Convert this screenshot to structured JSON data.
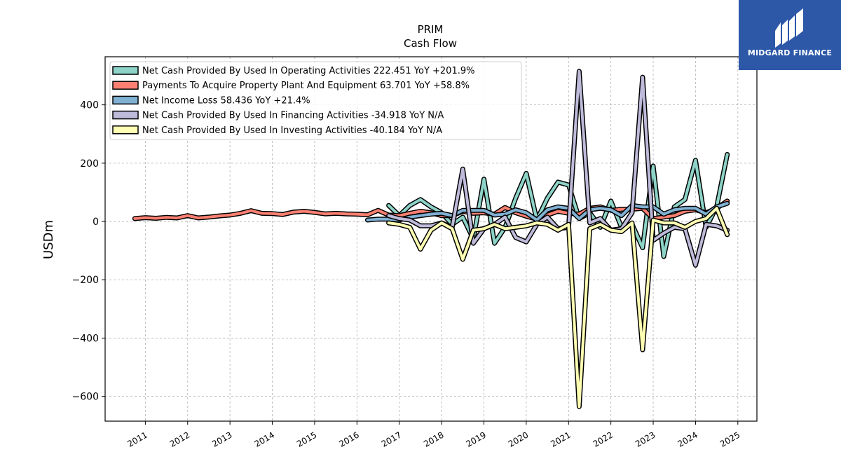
{
  "chart_data": {
    "type": "line",
    "title": "PRIM",
    "subtitle": "Cash Flow",
    "ylabel": "USDm",
    "xlabel": "",
    "xlim": [
      2010.05,
      2025.45
    ],
    "ylim": [
      -685,
      565
    ],
    "yticks": [
      -600,
      -400,
      -200,
      0,
      200,
      400
    ],
    "ytick_labels": [
      "−600",
      "−400",
      "−200",
      "0",
      "200",
      "400"
    ],
    "xticks": [
      2011,
      2012,
      2013,
      2014,
      2015,
      2016,
      2017,
      2018,
      2019,
      2020,
      2021,
      2022,
      2023,
      2024,
      2025
    ],
    "grid": true,
    "legend_position": "top-left",
    "series": [
      {
        "name": "Net Cash Provided By Used In Operating Activities",
        "legend_label": "Net Cash Provided By Used In Operating Activities  222.451 YoY +201.9%",
        "color": "#8dd3c7",
        "x": [
          2016.75,
          2017.0,
          2017.25,
          2017.5,
          2017.75,
          2018.0,
          2018.25,
          2018.5,
          2018.75,
          2019.0,
          2019.25,
          2019.5,
          2019.75,
          2020.0,
          2020.25,
          2020.5,
          2020.75,
          2021.0,
          2021.25,
          2021.5,
          2021.75,
          2022.0,
          2022.25,
          2022.5,
          2022.75,
          2023.0,
          2023.25,
          2023.5,
          2023.75,
          2024.0,
          2024.25,
          2024.5,
          2024.75
        ],
        "y": [
          55,
          20,
          55,
          75,
          50,
          30,
          -10,
          15,
          -60,
          145,
          -75,
          -20,
          80,
          165,
          5,
          80,
          135,
          125,
          10,
          30,
          -20,
          70,
          -20,
          -10,
          -90,
          190,
          -120,
          50,
          75,
          210,
          -20,
          50,
          230
        ]
      },
      {
        "name": "Payments To Acquire Property Plant And Equipment",
        "legend_label": "Payments To Acquire Property Plant And Equipment  63.701 YoY +58.8%",
        "color": "#fb8072",
        "x": [
          2010.75,
          2011.0,
          2011.25,
          2011.5,
          2011.75,
          2012.0,
          2012.25,
          2012.5,
          2012.75,
          2013.0,
          2013.25,
          2013.5,
          2013.75,
          2014.0,
          2014.25,
          2014.5,
          2014.75,
          2015.0,
          2015.25,
          2015.5,
          2015.75,
          2016.0,
          2016.25,
          2016.5,
          2016.75,
          2017.0,
          2017.25,
          2017.5,
          2017.75,
          2018.0,
          2018.25,
          2018.5,
          2018.75,
          2019.0,
          2019.25,
          2019.5,
          2019.75,
          2020.0,
          2020.25,
          2020.5,
          2020.75,
          2021.0,
          2021.25,
          2021.5,
          2021.75,
          2022.0,
          2022.25,
          2022.5,
          2022.75,
          2023.0,
          2023.25,
          2023.5,
          2023.75,
          2024.0,
          2024.25,
          2024.5,
          2024.75
        ],
        "y": [
          10,
          13,
          11,
          14,
          12,
          20,
          12,
          15,
          19,
          22,
          28,
          37,
          28,
          27,
          24,
          32,
          35,
          31,
          26,
          28,
          26,
          25,
          23,
          38,
          22,
          20,
          28,
          35,
          30,
          20,
          20,
          35,
          28,
          30,
          25,
          48,
          30,
          18,
          8,
          22,
          35,
          28,
          25,
          45,
          50,
          38,
          42,
          42,
          45,
          10,
          15,
          20,
          35,
          40,
          30,
          45,
          70
        ]
      },
      {
        "name": "Net Income Loss",
        "legend_label": "Net Income Loss  58.436 YoY +21.4%",
        "color": "#80b1d3",
        "x": [
          2016.25,
          2016.5,
          2016.75,
          2017.0,
          2017.25,
          2017.5,
          2017.75,
          2018.0,
          2018.25,
          2018.5,
          2018.75,
          2019.0,
          2019.25,
          2019.5,
          2019.75,
          2020.0,
          2020.25,
          2020.5,
          2020.75,
          2021.0,
          2021.25,
          2021.5,
          2021.75,
          2022.0,
          2022.25,
          2022.5,
          2022.75,
          2023.0,
          2023.25,
          2023.5,
          2023.75,
          2024.0,
          2024.25,
          2024.5,
          2024.75
        ],
        "y": [
          5,
          8,
          8,
          5,
          15,
          20,
          25,
          28,
          20,
          38,
          38,
          38,
          22,
          25,
          40,
          30,
          5,
          40,
          50,
          45,
          10,
          40,
          45,
          40,
          20,
          55,
          50,
          50,
          25,
          40,
          45,
          45,
          25,
          50,
          62
        ]
      },
      {
        "name": "Net Cash Provided By Used In Financing Activities",
        "legend_label": "Net Cash Provided By Used In Financing Activities  -34.918 YoY N/A",
        "color": "#bebada",
        "x": [
          2016.75,
          2017.0,
          2017.25,
          2017.5,
          2017.75,
          2018.0,
          2018.25,
          2018.5,
          2018.75,
          2019.0,
          2019.25,
          2019.5,
          2019.75,
          2020.0,
          2020.25,
          2020.5,
          2020.75,
          2021.0,
          2021.25,
          2021.5,
          2021.75,
          2022.0,
          2022.25,
          2022.5,
          2022.75,
          2023.0,
          2023.25,
          2023.5,
          2023.75,
          2024.0,
          2024.25,
          2024.5,
          2024.75
        ],
        "y": [
          20,
          10,
          5,
          -15,
          -15,
          -5,
          -20,
          180,
          -75,
          -25,
          -10,
          15,
          -55,
          -70,
          -10,
          15,
          -25,
          -20,
          515,
          -5,
          10,
          -30,
          -25,
          30,
          495,
          -65,
          -40,
          -20,
          -25,
          -150,
          -10,
          -15,
          -30
        ]
      },
      {
        "name": "Net Cash Provided By Used In Investing Activities",
        "legend_label": "Net Cash Provided By Used In Investing Activities  -40.184 YoY N/A",
        "color": "#ffffb3",
        "x": [
          2016.75,
          2017.0,
          2017.25,
          2017.5,
          2017.75,
          2018.0,
          2018.25,
          2018.5,
          2018.75,
          2019.0,
          2019.25,
          2019.5,
          2019.75,
          2020.0,
          2020.25,
          2020.5,
          2020.75,
          2021.0,
          2021.25,
          2021.5,
          2021.75,
          2022.0,
          2022.25,
          2022.5,
          2022.75,
          2023.0,
          2023.25,
          2023.5,
          2023.75,
          2024.0,
          2024.25,
          2024.5,
          2024.75
        ],
        "y": [
          -5,
          -10,
          -20,
          -95,
          -30,
          -5,
          -25,
          -130,
          -30,
          -25,
          -10,
          -25,
          -20,
          -15,
          -5,
          -10,
          -30,
          -10,
          -635,
          -25,
          -10,
          -30,
          -35,
          -5,
          -440,
          5,
          -5,
          -5,
          -20,
          0,
          10,
          45,
          -45
        ]
      }
    ]
  },
  "logo": {
    "text": "MIDGARD FINANCE",
    "background": "#2d58a8"
  }
}
